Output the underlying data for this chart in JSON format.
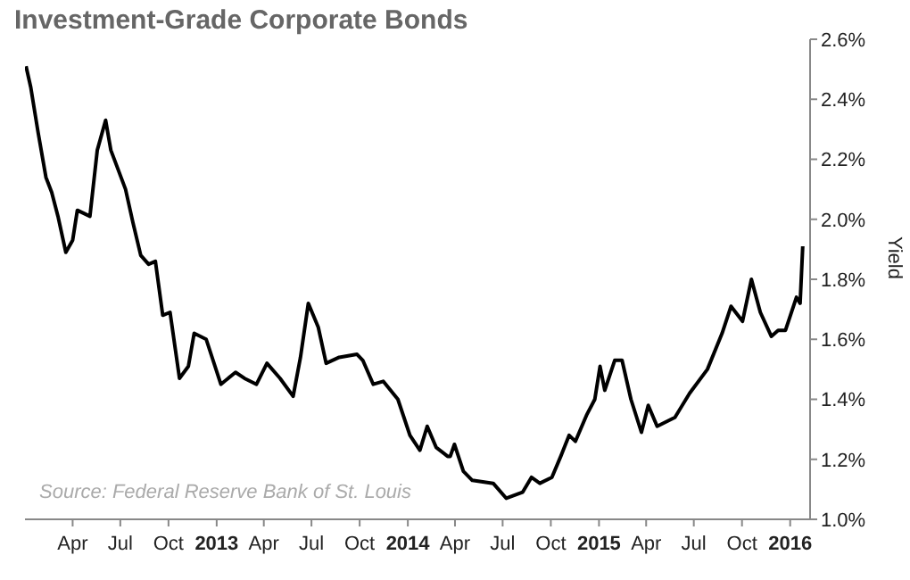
{
  "chart_data": {
    "type": "line",
    "title": "Investment-Grade Corporate Bonds",
    "ylabel": "Yield",
    "annotations": [
      "Source: Federal Reserve Bank of St. Louis"
    ],
    "x": [
      "2012-01-03",
      "2012-01-12",
      "2012-01-26",
      "2012-02-10",
      "2012-02-21",
      "2012-03-04",
      "2012-03-19",
      "2012-04-01",
      "2012-04-10",
      "2012-05-04",
      "2012-05-18",
      "2012-06-03",
      "2012-06-13",
      "2012-07-11",
      "2012-07-25",
      "2012-08-09",
      "2012-08-24",
      "2012-09-06",
      "2012-09-20",
      "2012-10-04",
      "2012-10-22",
      "2012-11-08",
      "2012-11-19",
      "2012-12-12",
      "2013-01-09",
      "2013-02-06",
      "2013-02-23",
      "2013-03-18",
      "2013-04-07",
      "2013-05-02",
      "2013-05-27",
      "2013-06-10",
      "2013-06-25",
      "2013-07-14",
      "2013-07-29",
      "2013-08-23",
      "2013-09-26",
      "2013-10-07",
      "2013-10-27",
      "2013-11-15",
      "2013-12-13",
      "2014-01-05",
      "2014-01-24",
      "2014-02-07",
      "2014-02-24",
      "2014-03-18",
      "2014-03-23",
      "2014-03-31",
      "2014-04-17",
      "2014-05-04",
      "2014-06-13",
      "2014-07-08",
      "2014-08-08",
      "2014-08-25",
      "2014-09-10",
      "2014-10-03",
      "2014-10-20",
      "2014-11-05",
      "2014-11-17",
      "2014-12-09",
      "2014-12-24",
      "2015-01-03",
      "2015-01-12",
      "2015-01-31",
      "2015-02-14",
      "2015-03-03",
      "2015-03-23",
      "2015-04-05",
      "2015-04-22",
      "2015-05-26",
      "2015-06-23",
      "2015-07-27",
      "2015-08-24",
      "2015-09-10",
      "2015-10-02",
      "2015-10-19",
      "2015-11-05",
      "2015-11-26",
      "2015-12-09",
      "2015-12-23",
      "2016-01-13",
      "2016-01-20",
      "2016-01-25"
    ],
    "values": [
      2.51,
      2.44,
      2.29,
      2.14,
      2.09,
      2.01,
      1.89,
      1.93,
      2.03,
      2.01,
      2.23,
      2.33,
      2.23,
      2.1,
      1.99,
      1.88,
      1.85,
      1.86,
      1.68,
      1.69,
      1.47,
      1.51,
      1.62,
      1.6,
      1.45,
      1.49,
      1.47,
      1.45,
      1.52,
      1.47,
      1.41,
      1.54,
      1.72,
      1.64,
      1.52,
      1.54,
      1.55,
      1.53,
      1.45,
      1.46,
      1.4,
      1.28,
      1.23,
      1.31,
      1.24,
      1.21,
      1.21,
      1.25,
      1.16,
      1.13,
      1.12,
      1.07,
      1.09,
      1.14,
      1.12,
      1.14,
      1.21,
      1.28,
      1.26,
      1.35,
      1.4,
      1.51,
      1.43,
      1.53,
      1.53,
      1.4,
      1.29,
      1.38,
      1.31,
      1.34,
      1.42,
      1.5,
      1.62,
      1.71,
      1.66,
      1.8,
      1.69,
      1.61,
      1.63,
      1.63,
      1.74,
      1.72,
      1.91
    ],
    "color": "#000000",
    "xlim": [
      "2012-01-01",
      "2016-02-08"
    ],
    "xticks": [
      {
        "value": "2012-04-01",
        "label": "Apr"
      },
      {
        "value": "2012-07-01",
        "label": "Jul"
      },
      {
        "value": "2012-10-01",
        "label": "Oct"
      },
      {
        "value": "2013-01-01",
        "label": "2013"
      },
      {
        "value": "2013-04-01",
        "label": "Apr"
      },
      {
        "value": "2013-07-01",
        "label": "Jul"
      },
      {
        "value": "2013-10-01",
        "label": "Oct"
      },
      {
        "value": "2014-01-01",
        "label": "2014"
      },
      {
        "value": "2014-04-01",
        "label": "Apr"
      },
      {
        "value": "2014-07-01",
        "label": "Jul"
      },
      {
        "value": "2014-10-01",
        "label": "Oct"
      },
      {
        "value": "2015-01-01",
        "label": "2015"
      },
      {
        "value": "2015-04-01",
        "label": "Apr"
      },
      {
        "value": "2015-07-01",
        "label": "Jul"
      },
      {
        "value": "2015-10-01",
        "label": "Oct"
      },
      {
        "value": "2016-01-01",
        "label": "2016"
      }
    ],
    "ylim": [
      1.0,
      2.6
    ],
    "yticks": [
      {
        "value": 1.0,
        "label": "1.0%"
      },
      {
        "value": 1.2,
        "label": "1.2%"
      },
      {
        "value": 1.4,
        "label": "1.4%"
      },
      {
        "value": 1.6,
        "label": "1.6%"
      },
      {
        "value": 1.8,
        "label": "1.8%"
      },
      {
        "value": 2.0,
        "label": "2.0%"
      },
      {
        "value": 2.2,
        "label": "2.2%"
      },
      {
        "value": 2.4,
        "label": "2.4%"
      },
      {
        "value": 2.6,
        "label": "2.6%"
      }
    ],
    "grid": false,
    "legend": false,
    "marker": "none",
    "line_style": "solid"
  }
}
